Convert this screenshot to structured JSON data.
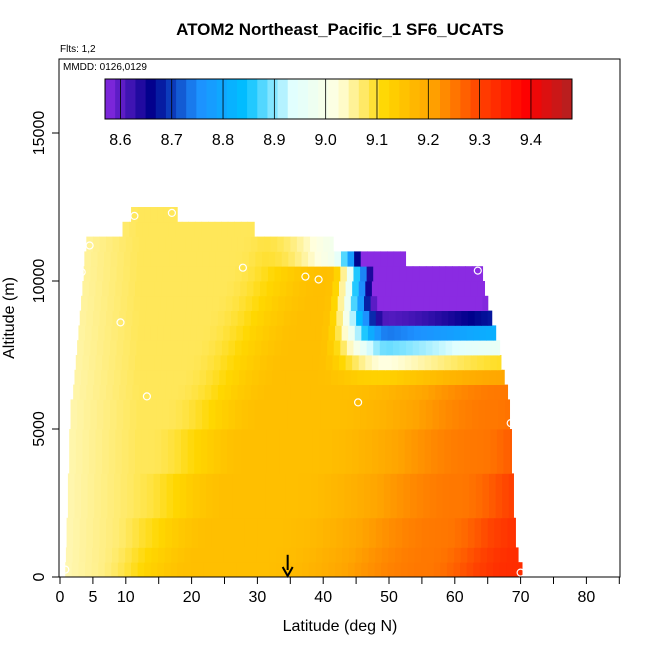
{
  "chart_data": {
    "type": "heatmap",
    "title": "ATOM2 Northeast_Pacific_1 SF6_UCATS",
    "flights_note": "Flts: 1,2",
    "dates_note": "MMDD: 0126,0129",
    "xlabel": "Latitude (deg N)",
    "ylabel": "Altitude (m)",
    "xlim": [
      0,
      85
    ],
    "ylim": [
      0,
      17500
    ],
    "x_ticks": [
      0,
      5,
      10,
      20,
      30,
      40,
      50,
      60,
      70,
      80
    ],
    "x_minor_ticks": [
      15,
      25,
      35,
      45,
      55,
      65,
      75,
      85
    ],
    "y_ticks": [
      0,
      5000,
      10000,
      15000
    ],
    "colorbar": {
      "min": 8.57,
      "max": 9.48,
      "ticks": [
        "8.6",
        "8.7",
        "8.8",
        "8.9",
        "9.0",
        "9.1",
        "9.2",
        "9.3",
        "9.4"
      ],
      "colors": [
        "#8a2be2",
        "#00008b",
        "#1e90ff",
        "#00bfff",
        "#e0ffff",
        "#ffffe0",
        "#ffd700",
        "#ffa500",
        "#ff4500",
        "#ff0000",
        "#b22222"
      ]
    },
    "altitude_rows": [
      {
        "alt_low": 0,
        "alt_high": 500,
        "lat_start": 0.8,
        "lat_end": 70.2
      },
      {
        "alt_low": 500,
        "alt_high": 1000,
        "lat_start": 0.9,
        "lat_end": 69.6
      },
      {
        "alt_low": 1000,
        "alt_high": 2000,
        "lat_start": 1.0,
        "lat_end": 69.2
      },
      {
        "alt_low": 2000,
        "alt_high": 3500,
        "lat_start": 1.2,
        "lat_end": 68.9
      },
      {
        "alt_low": 3500,
        "alt_high": 5000,
        "lat_start": 1.4,
        "lat_end": 68.6
      },
      {
        "alt_low": 5000,
        "alt_high": 6000,
        "lat_start": 1.6,
        "lat_end": 68.3
      },
      {
        "alt_low": 6000,
        "alt_high": 6500,
        "lat_start": 2.0,
        "lat_end": 68.0
      },
      {
        "alt_low": 6500,
        "alt_high": 7000,
        "lat_start": 2.2,
        "lat_end": 67.5
      },
      {
        "alt_low": 7000,
        "alt_high": 7500,
        "lat_start": 2.4,
        "lat_end": 67.0
      },
      {
        "alt_low": 7500,
        "alt_high": 8000,
        "lat_start": 2.6,
        "lat_end": 66.8
      },
      {
        "alt_low": 8000,
        "alt_high": 8500,
        "lat_start": 2.8,
        "lat_end": 66.2
      },
      {
        "alt_low": 8500,
        "alt_high": 9000,
        "lat_start": 3.0,
        "lat_end": 65.6
      },
      {
        "alt_low": 9000,
        "alt_high": 9500,
        "lat_start": 3.2,
        "lat_end": 65.0
      },
      {
        "alt_low": 9500,
        "alt_high": 10000,
        "lat_start": 3.4,
        "lat_end": 64.5
      },
      {
        "alt_low": 10000,
        "alt_high": 10500,
        "lat_start": 3.6,
        "lat_end": 64.2
      },
      {
        "alt_low": 10500,
        "alt_high": 11000,
        "lat_start": 3.7,
        "lat_end": 52.5
      },
      {
        "alt_low": 11000,
        "alt_high": 11500,
        "lat_start": 4.0,
        "lat_end": 41.5
      },
      {
        "alt_low": 11500,
        "alt_high": 12000,
        "lat_start": 9.5,
        "lat_end": 29.5
      },
      {
        "alt_low": 12000,
        "alt_high": 12500,
        "lat_start": 10.8,
        "lat_end": 17.8
      }
    ],
    "measurement_points": [
      {
        "lat": 0.8,
        "alt": 250
      },
      {
        "lat": 3.3,
        "alt": 10300
      },
      {
        "lat": 4.5,
        "alt": 11200
      },
      {
        "lat": 9.2,
        "alt": 8600
      },
      {
        "lat": 11.3,
        "alt": 12200
      },
      {
        "lat": 13.2,
        "alt": 6100
      },
      {
        "lat": 17.0,
        "alt": 12300
      },
      {
        "lat": 27.8,
        "alt": 10450
      },
      {
        "lat": 37.3,
        "alt": 10150
      },
      {
        "lat": 39.3,
        "alt": 10050
      },
      {
        "lat": 45.3,
        "alt": 5900
      },
      {
        "lat": 63.5,
        "alt": 10350
      },
      {
        "lat": 68.5,
        "alt": 5200
      },
      {
        "lat": 70.0,
        "alt": 150
      }
    ],
    "marker_arrow": {
      "lat": 34.6,
      "alt_top": 750,
      "alt_bottom": 0
    }
  }
}
